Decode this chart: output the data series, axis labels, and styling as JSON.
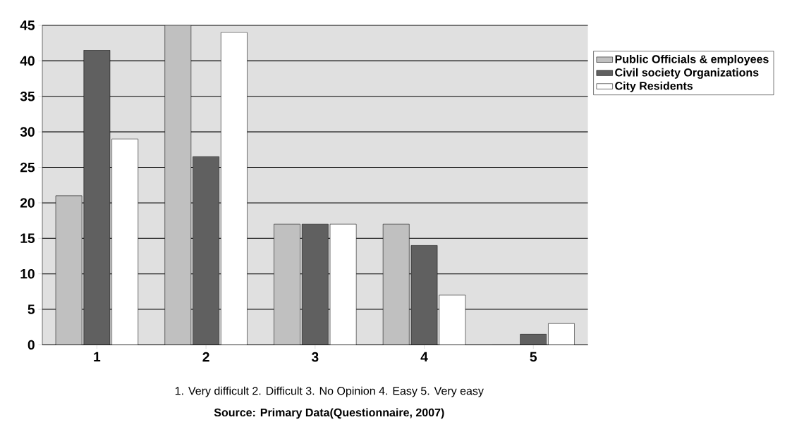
{
  "chart_data": {
    "type": "bar",
    "categories": [
      "1",
      "2",
      "3",
      "4",
      "5"
    ],
    "series": [
      {
        "name": "Public Officials & employees",
        "color": "#c0c0c0",
        "values": [
          21,
          45,
          17,
          17,
          0
        ]
      },
      {
        "name": "Civil society Organizations",
        "color": "#606060",
        "values": [
          41.5,
          26.5,
          17,
          14,
          1.5
        ]
      },
      {
        "name": "City Residents",
        "color": "#ffffff",
        "values": [
          29,
          44,
          17,
          7,
          3
        ]
      }
    ],
    "ylim": [
      0,
      45
    ],
    "yticks": [
      0,
      5,
      10,
      15,
      20,
      25,
      30,
      35,
      40,
      45
    ],
    "grid": "y",
    "legend": "top right",
    "annotations": [
      "1. Very difficult 2. Difficult 3. No Opinion 4. Easy  5. Very easy",
      "Source: Primary Data(Questionnaire, 2007)"
    ]
  }
}
